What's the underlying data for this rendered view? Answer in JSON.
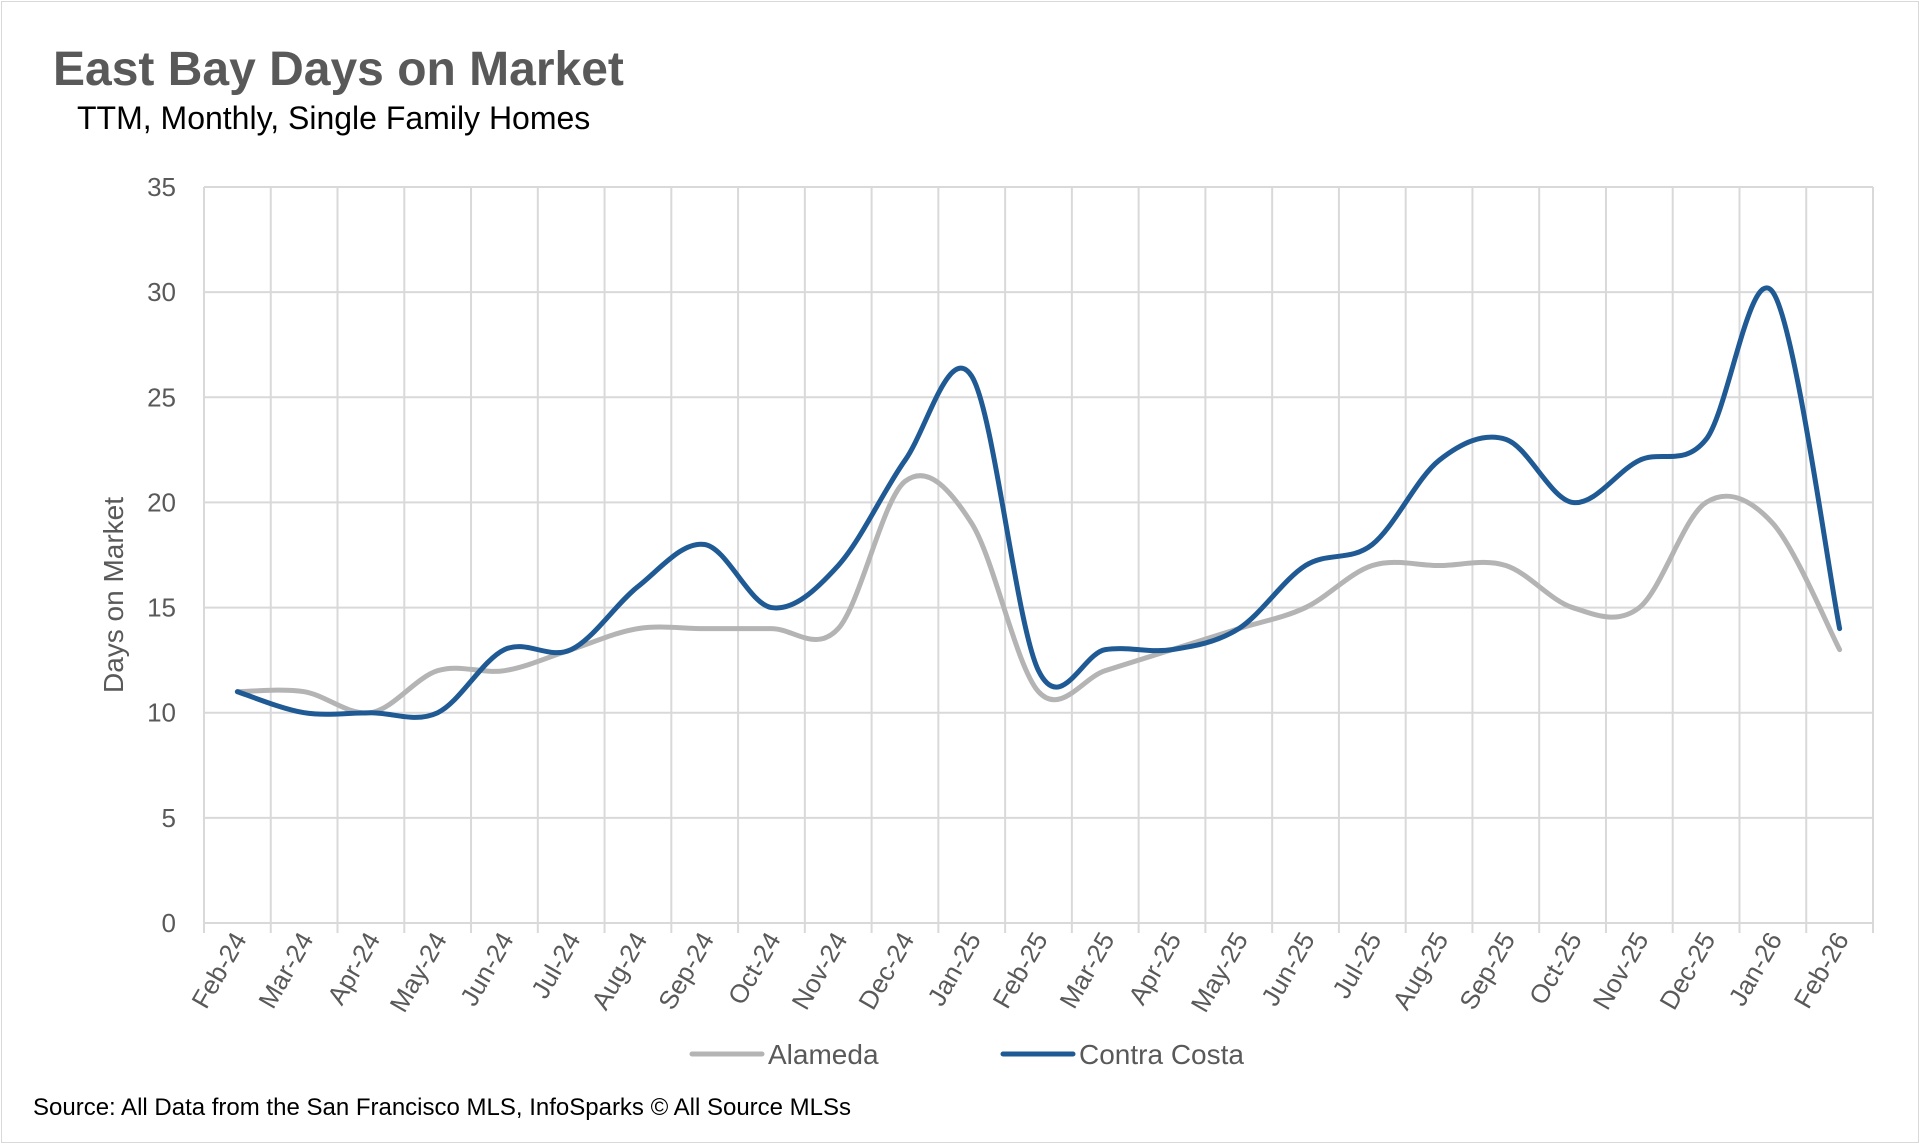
{
  "chart_data": {
    "type": "line",
    "title": "East Bay Days on Market",
    "subtitle": "TTM, Monthly, Single Family Homes",
    "xlabel": "",
    "ylabel": "Days on Market",
    "ylim": [
      0,
      35
    ],
    "yticks": [
      0,
      5,
      10,
      15,
      20,
      25,
      30,
      35
    ],
    "grid": true,
    "smoothed": true,
    "legend": "bottom",
    "categories": [
      "Feb-24",
      "Mar-24",
      "Apr-24",
      "May-24",
      "Jun-24",
      "Jul-24",
      "Aug-24",
      "Sep-24",
      "Oct-24",
      "Nov-24",
      "Dec-24",
      "Jan-25",
      "Feb-25",
      "Mar-25",
      "Apr-25",
      "May-25",
      "Jun-25",
      "Jul-25",
      "Aug-25",
      "Sep-25",
      "Oct-25",
      "Nov-25",
      "Dec-25",
      "Jan-26",
      "Feb-26"
    ],
    "series": [
      {
        "name": "Alameda",
        "color": "#b4b4b4",
        "values": [
          11,
          11,
          10,
          12,
          12,
          13,
          14,
          14,
          14,
          14,
          21,
          19,
          11,
          12,
          13,
          14,
          15,
          17,
          17,
          17,
          15,
          15,
          20,
          19,
          13
        ]
      },
      {
        "name": "Contra Costa",
        "color": "#1f5a94",
        "values": [
          11,
          10,
          10,
          10,
          13,
          13,
          16,
          18,
          15,
          17,
          22,
          26,
          12,
          13,
          13,
          14,
          17,
          18,
          22,
          23,
          20,
          22,
          23,
          30,
          14
        ]
      }
    ],
    "source": "Source: All Data from the San Francisco MLS, InfoSparks © All Source MLSs"
  }
}
